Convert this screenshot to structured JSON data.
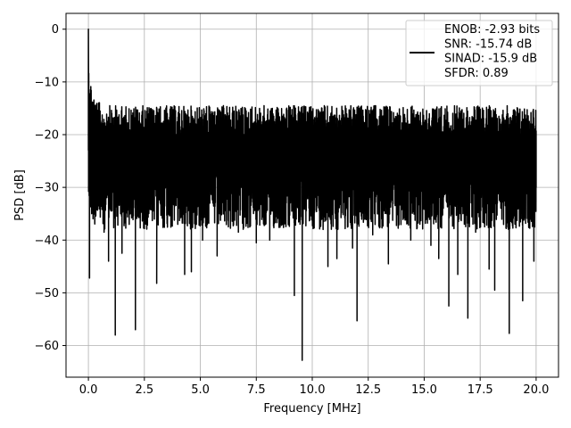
{
  "chart_data": {
    "type": "line",
    "xlabel": "Frequency [MHz]",
    "ylabel": "PSD [dB]",
    "xlim": [
      -1.0,
      21.0
    ],
    "ylim": [
      -66.0,
      3.0
    ],
    "xticks": [
      0.0,
      2.5,
      5.0,
      7.5,
      10.0,
      12.5,
      15.0,
      17.5,
      20.0
    ],
    "xtick_labels": [
      "0.0",
      "2.5",
      "5.0",
      "7.5",
      "10.0",
      "12.5",
      "15.0",
      "17.5",
      "20.0"
    ],
    "yticks": [
      0,
      -10,
      -20,
      -30,
      -40,
      -50,
      -60
    ],
    "ytick_labels": [
      "0",
      "−10",
      "−20",
      "−30",
      "−40",
      "−50",
      "−60"
    ],
    "grid": true,
    "legend_position": "top-right",
    "legend_entries": [
      "ENOB: -2.93 bits",
      "SNR: -15.74 dB",
      "SINAD: -15.9 dB",
      "SFDR: 0.89"
    ],
    "series": [
      {
        "color": "#000000",
        "x_range": [
          0.0,
          20.0
        ],
        "peak": {
          "x": 0.0,
          "y": 0.0
        },
        "band_upper_approx": -14,
        "band_lower_approx": -37,
        "notable_dips": [
          {
            "x": 0.05,
            "y": -47.2
          },
          {
            "x": 0.45,
            "y": -33.5
          },
          {
            "x": 0.7,
            "y": -38.5
          },
          {
            "x": 0.9,
            "y": -44.0
          },
          {
            "x": 1.2,
            "y": -58.0
          },
          {
            "x": 1.5,
            "y": -42.5
          },
          {
            "x": 2.1,
            "y": -57.0
          },
          {
            "x": 3.05,
            "y": -48.2
          },
          {
            "x": 4.3,
            "y": -46.5
          },
          {
            "x": 4.6,
            "y": -46.0
          },
          {
            "x": 5.1,
            "y": -40.0
          },
          {
            "x": 5.75,
            "y": -43.0
          },
          {
            "x": 6.7,
            "y": -38.5
          },
          {
            "x": 7.5,
            "y": -40.5
          },
          {
            "x": 8.1,
            "y": -40.0
          },
          {
            "x": 9.2,
            "y": -50.5
          },
          {
            "x": 9.55,
            "y": -62.8
          },
          {
            "x": 10.7,
            "y": -45.0
          },
          {
            "x": 11.1,
            "y": -43.5
          },
          {
            "x": 11.8,
            "y": -41.5
          },
          {
            "x": 12.0,
            "y": -55.3
          },
          {
            "x": 12.7,
            "y": -39.0
          },
          {
            "x": 13.4,
            "y": -44.5
          },
          {
            "x": 14.4,
            "y": -40.0
          },
          {
            "x": 15.3,
            "y": -41.0
          },
          {
            "x": 15.65,
            "y": -43.5
          },
          {
            "x": 16.1,
            "y": -52.5
          },
          {
            "x": 16.5,
            "y": -46.5
          },
          {
            "x": 16.95,
            "y": -54.8
          },
          {
            "x": 17.3,
            "y": -38.5
          },
          {
            "x": 17.9,
            "y": -45.5
          },
          {
            "x": 18.15,
            "y": -49.5
          },
          {
            "x": 18.8,
            "y": -57.7
          },
          {
            "x": 19.4,
            "y": -51.5
          },
          {
            "x": 19.9,
            "y": -44.0
          }
        ]
      }
    ]
  }
}
